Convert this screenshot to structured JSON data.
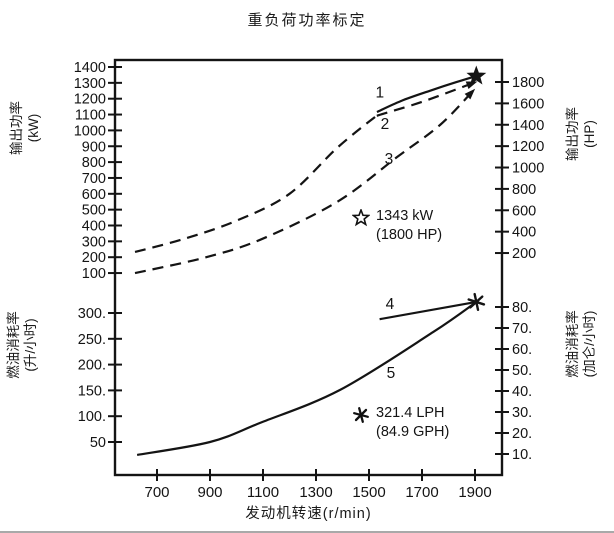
{
  "chart_data": {
    "type": "line",
    "title": "重负荷功率标定",
    "x_axis": {
      "label": "发动机转速(r/min)",
      "ticks": [
        700,
        900,
        1100,
        1300,
        1500,
        1700,
        1900
      ],
      "range": [
        540,
        2005
      ]
    },
    "panels": [
      {
        "id": "power",
        "left_axis": {
          "title": "输出功率",
          "unit": "(kW)",
          "ticks": [
            1400,
            1300,
            1200,
            1100,
            1000,
            900,
            800,
            700,
            600,
            500,
            400,
            300,
            200,
            100
          ],
          "range": [
            50,
            1445
          ]
        },
        "right_axis": {
          "title": "输出功率",
          "unit": "(HP)",
          "ticks": [
            1800,
            1600,
            1400,
            1200,
            1000,
            800,
            600,
            400,
            200
          ]
        },
        "series": [
          {
            "name": "1",
            "style": "solid",
            "arrow": false,
            "label_at": [
              1541,
              1240
            ],
            "points": [
              [
                1530,
                1116
              ],
              [
                1620,
                1185
              ],
              [
                1730,
                1250
              ],
              [
                1830,
                1305
              ],
              [
                1905,
                1343
              ]
            ]
          },
          {
            "name": "2",
            "style": "dashed",
            "arrow": true,
            "label_at": [
              1560,
              1040
            ],
            "points": [
              [
                617,
                233
              ],
              [
                800,
                315
              ],
              [
                1000,
                430
              ],
              [
                1200,
                600
              ],
              [
                1380,
                890
              ],
              [
                1523,
                1085
              ],
              [
                1535,
                1095
              ],
              [
                1700,
                1180
              ],
              [
                1895,
                1300
              ]
            ]
          },
          {
            "name": "3",
            "style": "dashed",
            "arrow": true,
            "label_at": [
              1575,
              820
            ],
            "points": [
              [
                617,
                100
              ],
              [
                874,
                195
              ],
              [
                1089,
                310
              ],
              [
                1379,
                548
              ],
              [
                1606,
                832
              ],
              [
                1768,
                1034
              ],
              [
                1890,
                1245
              ]
            ]
          }
        ],
        "rated_point": {
          "marker": "star",
          "x": 1905,
          "y": 1343
        },
        "annotation": {
          "marker": "star",
          "line1": "1343 kW",
          "line2": "(1800 HP)"
        }
      },
      {
        "id": "fuel",
        "left_axis": {
          "title": "燃油消耗率",
          "unit": "(升/小时)",
          "ticks": [
            300,
            250,
            200,
            150,
            100,
            50
          ],
          "labels": [
            "300.",
            "250.",
            "200.",
            "150.",
            "100.",
            "50"
          ]
        },
        "right_axis": {
          "title": "燃油消耗率",
          "unit": "(加仑/小时)",
          "ticks": [
            80,
            70,
            60,
            50,
            40,
            30,
            20,
            10
          ],
          "labels": [
            "80.",
            "70.",
            "60.",
            "50.",
            "40.",
            "30.",
            "20.",
            "10."
          ]
        },
        "series": [
          {
            "name": "4",
            "style": "solid",
            "arrow": false,
            "label_at": [
              1579,
              317
            ],
            "points": [
              [
                1540,
                288
              ],
              [
                1905,
                321.4
              ]
            ]
          },
          {
            "name": "5",
            "style": "solid",
            "arrow": false,
            "label_at": [
              1583,
              184
            ],
            "points": [
              [
                625,
                25
              ],
              [
                900,
                50
              ],
              [
                1089,
                87
              ],
              [
                1391,
                151
              ],
              [
                1742,
                263
              ],
              [
                1905,
                321.4
              ]
            ]
          }
        ],
        "rated_point": {
          "marker": "asterisk",
          "x": 1905,
          "y": 321.4
        },
        "annotation": {
          "marker": "asterisk",
          "line1": "321.4 LPH",
          "line2": "(84.9 GPH)"
        }
      }
    ]
  }
}
